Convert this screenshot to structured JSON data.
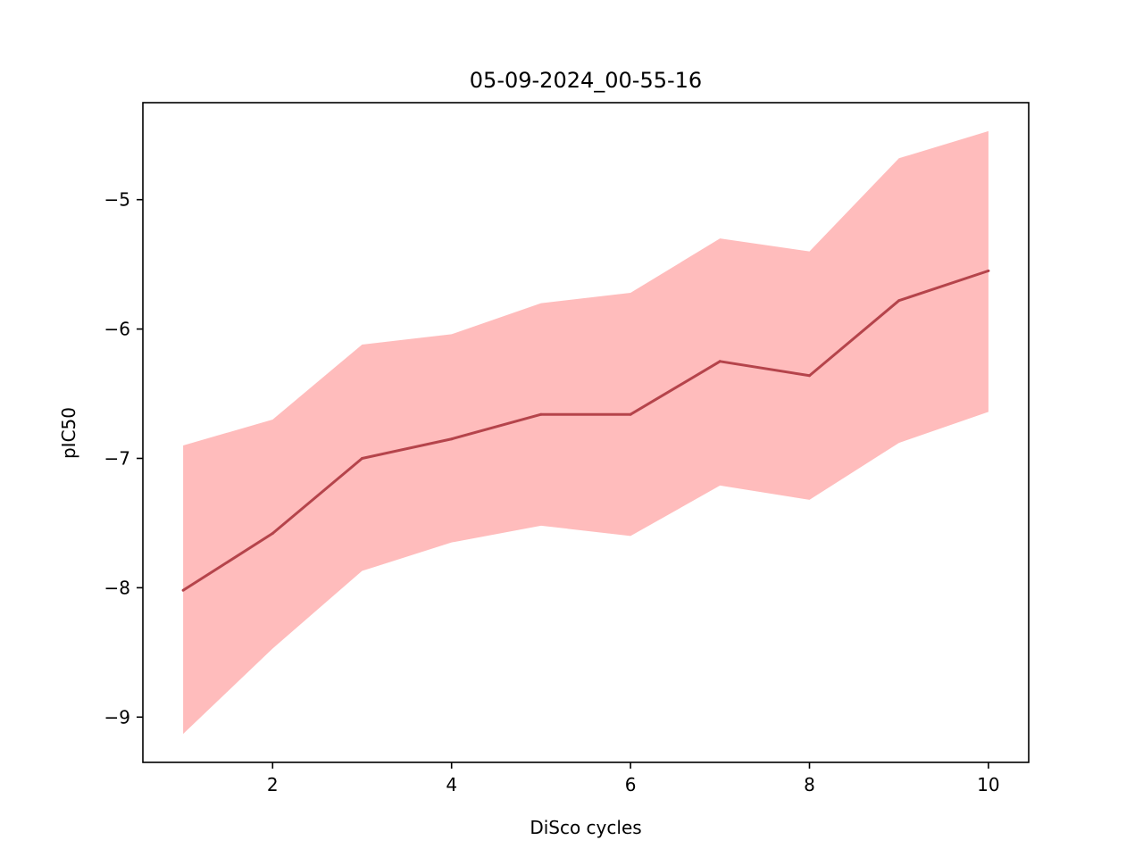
{
  "chart_data": {
    "type": "line",
    "title": "05-09-2024_00-55-16",
    "xlabel": "DiSco cycles",
    "ylabel": "pIC50",
    "x": [
      1,
      2,
      3,
      4,
      5,
      6,
      7,
      8,
      9,
      10
    ],
    "series": [
      {
        "values": [
          -8.02,
          -7.58,
          -7.0,
          -6.85,
          -6.66,
          -6.66,
          -6.25,
          -6.36,
          -5.78,
          -5.55
        ],
        "upper": [
          -6.9,
          -6.7,
          -6.12,
          -6.04,
          -5.8,
          -5.72,
          -5.3,
          -5.4,
          -4.68,
          -4.47
        ],
        "lower": [
          -9.13,
          -8.47,
          -7.87,
          -7.65,
          -7.52,
          -7.6,
          -7.21,
          -7.32,
          -6.88,
          -6.64
        ],
        "color": "#b5444b",
        "band_color": "#ffbcbc"
      }
    ],
    "xlim": [
      0.55,
      10.45
    ],
    "ylim": [
      -9.35,
      -4.25
    ],
    "xticks": [
      "2",
      "4",
      "6",
      "8",
      "10"
    ],
    "xtick_values": [
      2,
      4,
      6,
      8,
      10
    ],
    "yticks": [
      "−9",
      "−8",
      "−7",
      "−6",
      "−5"
    ],
    "ytick_values": [
      -9,
      -8,
      -7,
      -6,
      -5
    ],
    "grid": false,
    "legend": false
  }
}
